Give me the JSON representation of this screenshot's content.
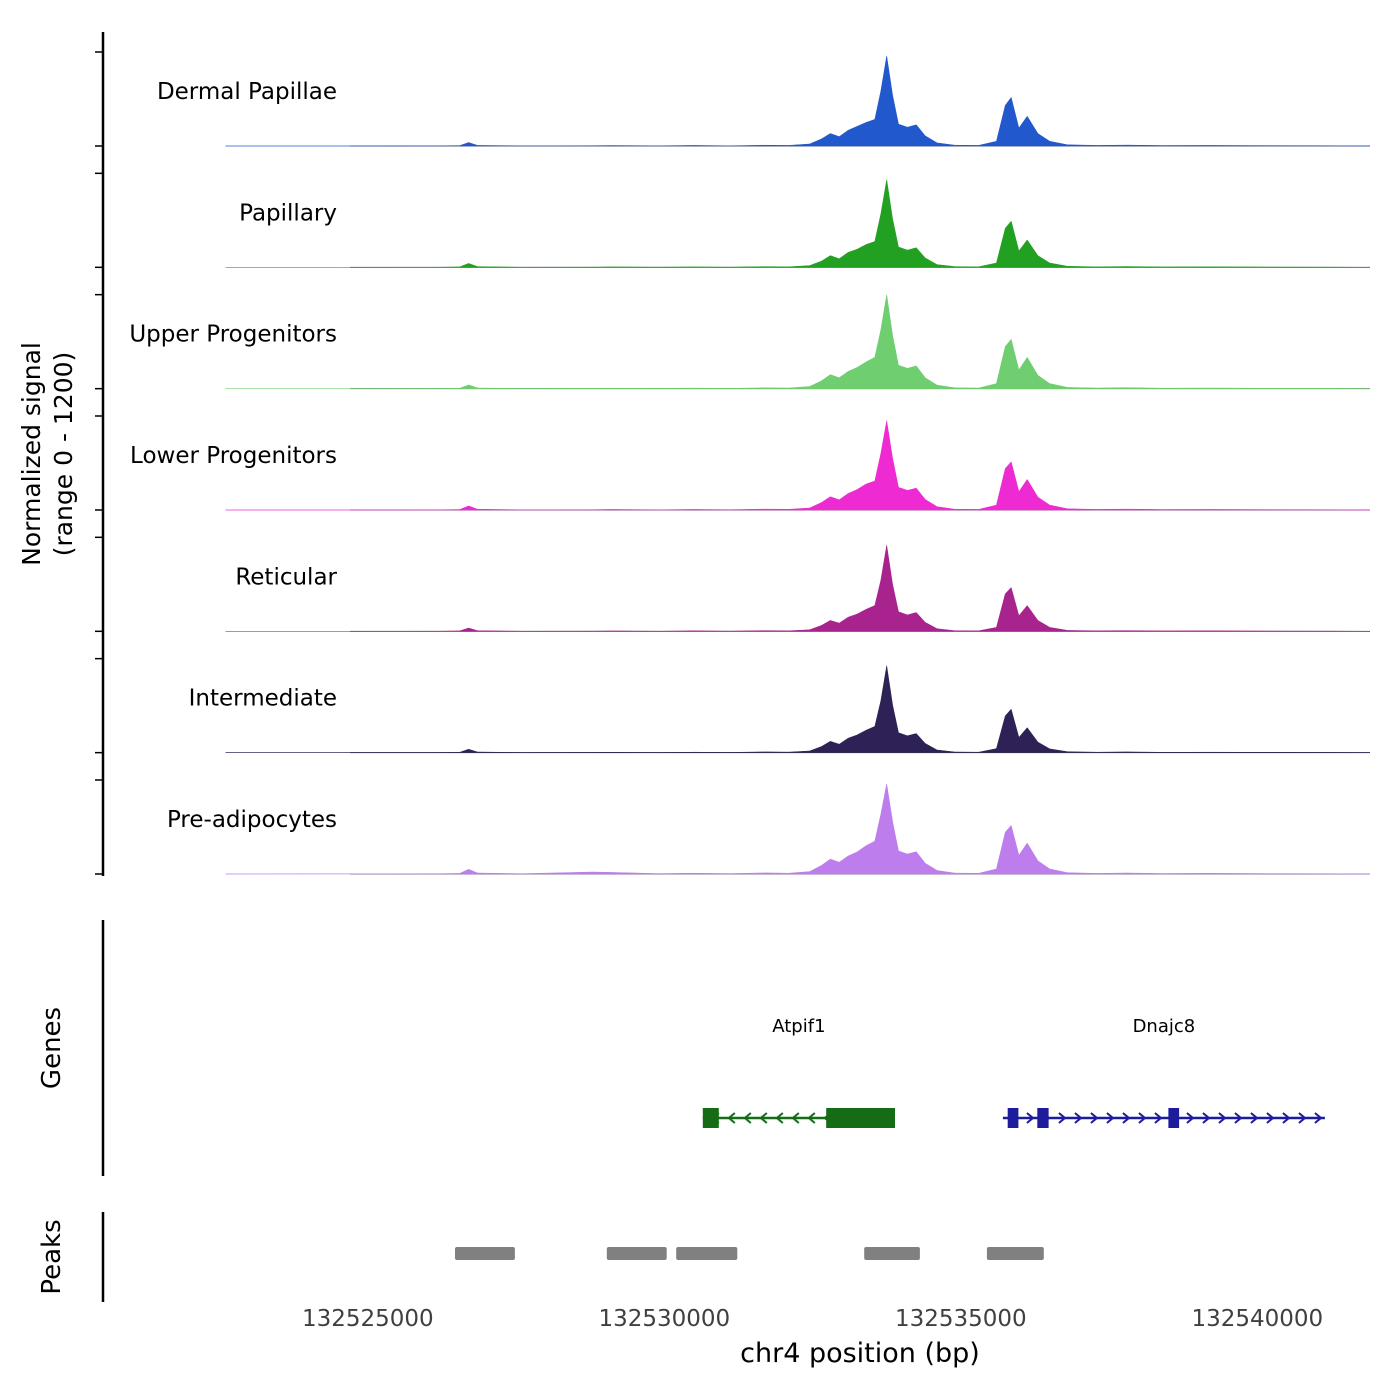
{
  "figure": {
    "y_axis_label_line1": "Normalized signal",
    "y_axis_label_line2": "(range 0 - 1200)",
    "genes_label": "Genes",
    "peaks_label": "Peaks",
    "x_label": "chr4 position (bp)"
  },
  "chart_data": {
    "type": "area",
    "title": "",
    "xlabel": "chr4 position (bp)",
    "ylabel": "Normalized signal (range 0 - 1200)",
    "grid": false,
    "legend": "none",
    "x_range_bp": [
      132524700,
      132541900
    ],
    "y_range": [
      0,
      1200
    ],
    "x_ticks": [
      {
        "value": 132525000,
        "label": "132525000"
      },
      {
        "value": 132530000,
        "label": "132530000"
      },
      {
        "value": 132535000,
        "label": "132535000"
      },
      {
        "value": 132540000,
        "label": "132540000"
      }
    ],
    "x": [
      132522600,
      132524500,
      132526200,
      132526550,
      132526700,
      132526850,
      132527600,
      132528800,
      132529100,
      132529900,
      132530500,
      132531100,
      132531700,
      132532100,
      132532450,
      132532650,
      132532800,
      132532950,
      132533100,
      132533250,
      132533400,
      132533550,
      132533650,
      132533750,
      132533850,
      132533950,
      132534100,
      132534250,
      132534400,
      132534600,
      132534900,
      132535300,
      132535600,
      132535750,
      132535850,
      132535980,
      132536120,
      132536300,
      132536500,
      132536800,
      132537300,
      132537800,
      132538400,
      132539200,
      132540200,
      132541200,
      132541900
    ],
    "series": [
      {
        "name": "Dermal Papillae",
        "color": "#2158cc",
        "values": [
          0,
          0,
          2,
          5,
          45,
          8,
          2,
          4,
          6,
          3,
          8,
          3,
          10,
          8,
          25,
          90,
          160,
          120,
          200,
          250,
          300,
          340,
          700,
          1150,
          650,
          280,
          240,
          270,
          130,
          40,
          10,
          8,
          60,
          520,
          620,
          230,
          380,
          160,
          60,
          15,
          8,
          12,
          6,
          8,
          5,
          4,
          0
        ]
      },
      {
        "name": "Papillary",
        "color": "#22a022",
        "values": [
          0,
          0,
          2,
          6,
          50,
          9,
          2,
          3,
          5,
          3,
          6,
          3,
          9,
          7,
          22,
          80,
          150,
          110,
          190,
          230,
          290,
          330,
          680,
          1120,
          620,
          260,
          220,
          250,
          120,
          35,
          9,
          7,
          55,
          500,
          590,
          210,
          350,
          150,
          55,
          13,
          7,
          10,
          5,
          7,
          4,
          3,
          0
        ]
      },
      {
        "name": "Upper Progenitors",
        "color": "#6fce6f",
        "values": [
          0,
          0,
          2,
          6,
          48,
          9,
          2,
          4,
          6,
          3,
          7,
          3,
          11,
          9,
          28,
          100,
          180,
          140,
          220,
          270,
          340,
          400,
          750,
          1200,
          680,
          300,
          260,
          290,
          140,
          45,
          11,
          8,
          65,
          540,
          630,
          240,
          400,
          170,
          65,
          16,
          8,
          13,
          6,
          8,
          5,
          4,
          0
        ]
      },
      {
        "name": "Lower Progenitors",
        "color": "#ee2ad2",
        "values": [
          0,
          0,
          3,
          6,
          52,
          10,
          3,
          4,
          7,
          3,
          8,
          4,
          12,
          9,
          26,
          95,
          170,
          130,
          210,
          260,
          330,
          370,
          720,
          1140,
          660,
          290,
          250,
          280,
          135,
          42,
          10,
          8,
          62,
          530,
          615,
          235,
          390,
          165,
          62,
          15,
          8,
          12,
          6,
          8,
          5,
          4,
          0
        ]
      },
      {
        "name": "Reticular",
        "color": "#a8238e",
        "values": [
          0,
          0,
          2,
          5,
          42,
          8,
          2,
          3,
          5,
          2,
          6,
          3,
          9,
          7,
          20,
          75,
          140,
          105,
          180,
          220,
          280,
          330,
          650,
          1100,
          600,
          250,
          210,
          240,
          115,
          33,
          8,
          6,
          50,
          480,
          560,
          200,
          330,
          140,
          50,
          12,
          6,
          9,
          5,
          6,
          4,
          3,
          0
        ]
      },
      {
        "name": "Intermediate",
        "color": "#2e2155",
        "values": [
          0,
          0,
          2,
          5,
          44,
          8,
          2,
          3,
          5,
          2,
          6,
          3,
          9,
          7,
          21,
          78,
          145,
          108,
          185,
          225,
          285,
          335,
          660,
          1110,
          610,
          255,
          215,
          245,
          118,
          34,
          8,
          6,
          52,
          470,
          555,
          195,
          320,
          135,
          48,
          12,
          6,
          9,
          5,
          6,
          4,
          3,
          0
        ]
      },
      {
        "name": "Pre-adipocytes",
        "color": "#bd7ded",
        "values": [
          0,
          2,
          3,
          8,
          60,
          12,
          3,
          25,
          20,
          5,
          10,
          5,
          14,
          10,
          30,
          110,
          190,
          150,
          230,
          280,
          360,
          420,
          760,
          1150,
          670,
          295,
          255,
          285,
          138,
          44,
          11,
          9,
          64,
          535,
          620,
          238,
          395,
          168,
          64,
          16,
          8,
          13,
          6,
          9,
          5,
          4,
          0
        ]
      }
    ],
    "genes": [
      {
        "name": "Atpif1",
        "color": "#156c15",
        "strand": "-",
        "start": 132530650,
        "end": 132533890,
        "exons": [
          [
            132530650,
            132530920
          ],
          [
            132532730,
            132533890
          ]
        ]
      },
      {
        "name": "Dnajc8",
        "color": "#1c1c9c",
        "strand": "+",
        "start": 132535710,
        "end": 132541140,
        "exons": [
          [
            132535790,
            132535970
          ],
          [
            132536290,
            132536480
          ],
          [
            132538500,
            132538680
          ]
        ]
      }
    ],
    "peaks_bp": [
      [
        132526470,
        132527480
      ],
      [
        132529030,
        132530040
      ],
      [
        132530200,
        132531230
      ],
      [
        132533370,
        132534310
      ],
      [
        132535440,
        132536400
      ]
    ]
  }
}
